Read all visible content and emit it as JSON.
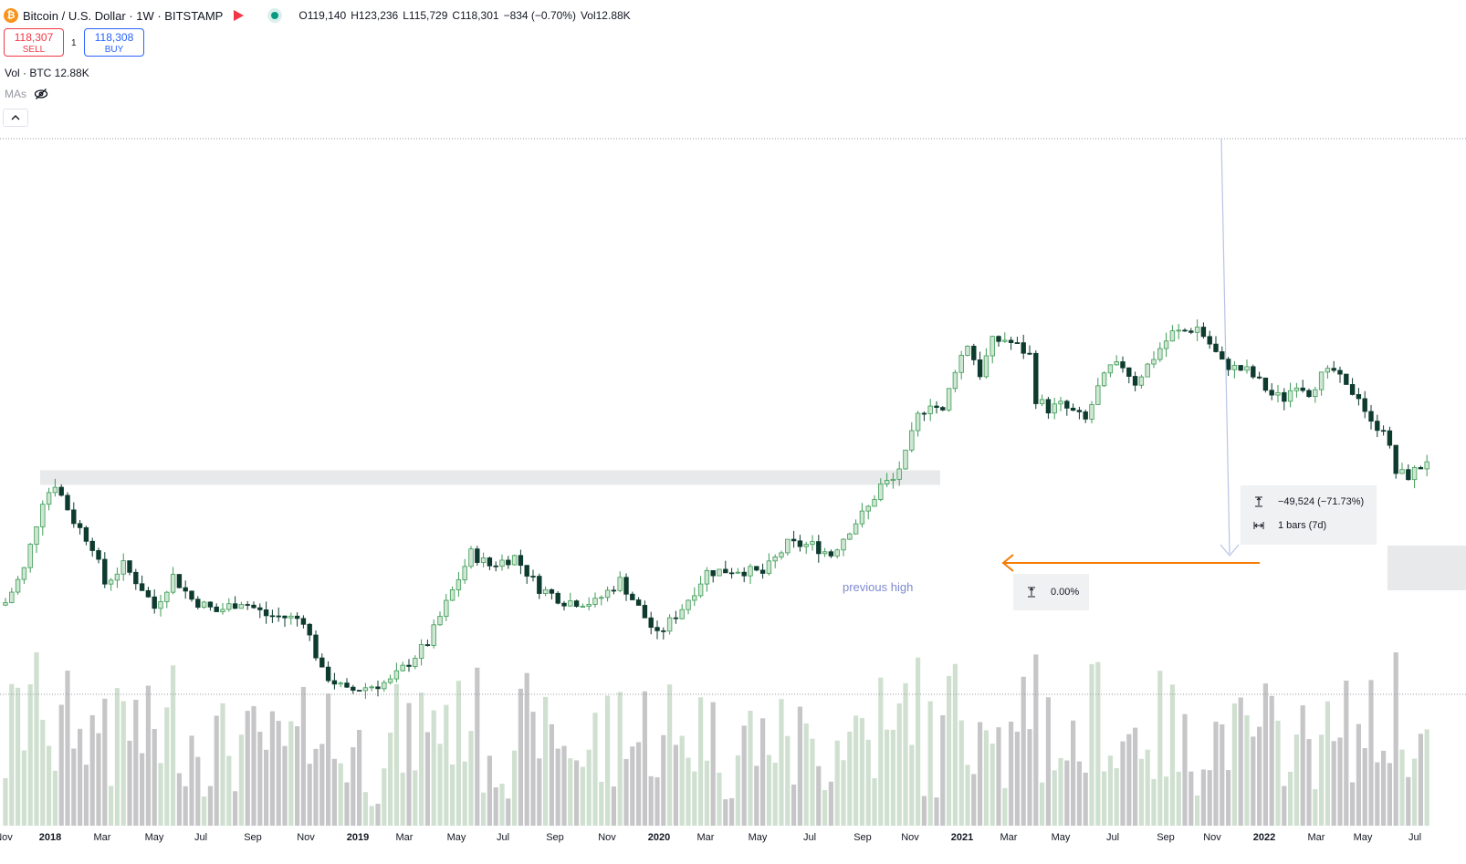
{
  "header": {
    "symbol_title": "Bitcoin / U.S. Dollar · 1W · BITSTAMP",
    "icon": "bitcoin-icon",
    "ohlc": {
      "open": "O119,140",
      "high": "H123,236",
      "low": "L115,729",
      "close": "C118,301",
      "change": "−834 (−0.70%)",
      "volume": "Vol12.88K"
    }
  },
  "trade": {
    "sell_price": "118,307",
    "sell_label": "SELL",
    "quantity": "1",
    "buy_price": "118,308",
    "buy_label": "BUY"
  },
  "indicators": {
    "volume_legend": "Vol · BTC  12.88K",
    "mas_label": "MAs"
  },
  "measure_box": {
    "price_change": "−49,524 (−71.73%)",
    "bars": "1 bars (7d)"
  },
  "measure_box2": {
    "price_change": "0.00%"
  },
  "annotation": {
    "text": "previous high"
  },
  "colors": {
    "up": "#3d9b56",
    "up_fill": "#cfe7d2",
    "down": "#0d3b2e",
    "arrow": "#f57c00",
    "zone": "#e8e9eb",
    "vol_up": "#cfe0d0",
    "vol_down": "#c6c6c8"
  },
  "chart_data": {
    "type": "candlestick",
    "interval": "1W",
    "x_tick_labels": [
      "Nov",
      "2018",
      "Mar",
      "May",
      "Jul",
      "Sep",
      "Nov",
      "2019",
      "Mar",
      "May",
      "Jul",
      "Sep",
      "Nov",
      "2020",
      "Mar",
      "May",
      "Jul",
      "Sep",
      "Nov",
      "2021",
      "Mar",
      "May",
      "Jul",
      "Sep",
      "Nov",
      "2022",
      "Mar",
      "May",
      "Jul"
    ],
    "y_scale": "log",
    "previous_high": 19700,
    "price_keypoints": [
      {
        "t": 0,
        "p": 7300
      },
      {
        "t": 3,
        "p": 9500
      },
      {
        "t": 6,
        "p": 16500
      },
      {
        "t": 8,
        "p": 18800
      },
      {
        "t": 11,
        "p": 14000
      },
      {
        "t": 14,
        "p": 11500
      },
      {
        "t": 16,
        "p": 8500
      },
      {
        "t": 19,
        "p": 9800
      },
      {
        "t": 22,
        "p": 8200
      },
      {
        "t": 24,
        "p": 7000
      },
      {
        "t": 27,
        "p": 9000
      },
      {
        "t": 30,
        "p": 7500
      },
      {
        "t": 34,
        "p": 6800
      },
      {
        "t": 38,
        "p": 7400
      },
      {
        "t": 42,
        "p": 6600
      },
      {
        "t": 48,
        "p": 6400
      },
      {
        "t": 51,
        "p": 4200
      },
      {
        "t": 55,
        "p": 3600
      },
      {
        "t": 62,
        "p": 3900
      },
      {
        "t": 68,
        "p": 5300
      },
      {
        "t": 72,
        "p": 8000
      },
      {
        "t": 75,
        "p": 10800
      },
      {
        "t": 78,
        "p": 9800
      },
      {
        "t": 82,
        "p": 10500
      },
      {
        "t": 86,
        "p": 8200
      },
      {
        "t": 90,
        "p": 7400
      },
      {
        "t": 95,
        "p": 7300
      },
      {
        "t": 99,
        "p": 8700
      },
      {
        "t": 102,
        "p": 7000
      },
      {
        "t": 105,
        "p": 5600
      },
      {
        "t": 109,
        "p": 7000
      },
      {
        "t": 113,
        "p": 9300
      },
      {
        "t": 118,
        "p": 9500
      },
      {
        "t": 122,
        "p": 9200
      },
      {
        "t": 126,
        "p": 11600
      },
      {
        "t": 130,
        "p": 11500
      },
      {
        "t": 133,
        "p": 10700
      },
      {
        "t": 136,
        "p": 13100
      },
      {
        "t": 139,
        "p": 15500
      },
      {
        "t": 141,
        "p": 18500
      },
      {
        "t": 143,
        "p": 19300
      },
      {
        "t": 145,
        "p": 23500
      },
      {
        "t": 147,
        "p": 32000
      },
      {
        "t": 149,
        "p": 36000
      },
      {
        "t": 151,
        "p": 33000
      },
      {
        "t": 153,
        "p": 47000
      },
      {
        "t": 155,
        "p": 57000
      },
      {
        "t": 157,
        "p": 45000
      },
      {
        "t": 159,
        "p": 58000
      },
      {
        "t": 161,
        "p": 59000
      },
      {
        "t": 163,
        "p": 56000
      },
      {
        "t": 165,
        "p": 52000
      },
      {
        "t": 166,
        "p": 37000
      },
      {
        "t": 168,
        "p": 34000
      },
      {
        "t": 170,
        "p": 35000
      },
      {
        "t": 172,
        "p": 33000
      },
      {
        "t": 174,
        "p": 31000
      },
      {
        "t": 176,
        "p": 40000
      },
      {
        "t": 178,
        "p": 47000
      },
      {
        "t": 180,
        "p": 48000
      },
      {
        "t": 182,
        "p": 42000
      },
      {
        "t": 184,
        "p": 48000
      },
      {
        "t": 186,
        "p": 55000
      },
      {
        "t": 188,
        "p": 62000
      },
      {
        "t": 190,
        "p": 63000
      },
      {
        "t": 192,
        "p": 65000
      },
      {
        "t": 194,
        "p": 57000
      },
      {
        "t": 196,
        "p": 49000
      },
      {
        "t": 198,
        "p": 47000
      },
      {
        "t": 200,
        "p": 46000
      },
      {
        "t": 202,
        "p": 42000
      },
      {
        "t": 204,
        "p": 38000
      },
      {
        "t": 206,
        "p": 37000
      },
      {
        "t": 208,
        "p": 42000
      },
      {
        "t": 210,
        "p": 39000
      },
      {
        "t": 212,
        "p": 44000
      },
      {
        "t": 214,
        "p": 46000
      },
      {
        "t": 216,
        "p": 40000
      },
      {
        "t": 218,
        "p": 38000
      },
      {
        "t": 220,
        "p": 30000
      },
      {
        "t": 222,
        "p": 29500
      },
      {
        "t": 224,
        "p": 20500
      },
      {
        "t": 226,
        "p": 20000
      },
      {
        "t": 228,
        "p": 21500
      },
      {
        "t": 229,
        "p": 22800
      }
    ]
  }
}
